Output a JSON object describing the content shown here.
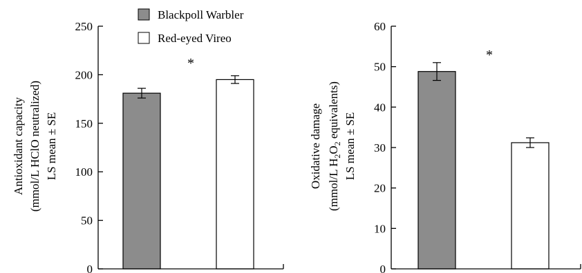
{
  "chart_data": [
    {
      "type": "bar",
      "categories": [
        "Blackpoll Warbler",
        "Red-eyed Vireo"
      ],
      "values": [
        181,
        195
      ],
      "errors": [
        5,
        4
      ],
      "ylim": [
        0,
        250
      ],
      "yticks": [
        0,
        50,
        100,
        150,
        200,
        250
      ],
      "ylabel_lines": [
        "Antioxidant capacity",
        "(mmol/L HClO neutralized)",
        "LS mean ± SE"
      ],
      "annotation": "*",
      "colors": [
        "#8c8c8c",
        "#ffffff"
      ]
    },
    {
      "type": "bar",
      "categories": [
        "Blackpoll Warbler",
        "Red-eyed Vireo"
      ],
      "values": [
        48.8,
        31.2
      ],
      "errors": [
        2.2,
        1.2
      ],
      "ylim": [
        0,
        60
      ],
      "yticks": [
        0,
        10,
        20,
        30,
        40,
        50,
        60
      ],
      "ylabel_lines": [
        "Oxidative damage",
        "(mmol/L H2O2 equivalents)",
        "LS mean ± SE"
      ],
      "annotation": "*",
      "colors": [
        "#8c8c8c",
        "#ffffff"
      ]
    }
  ],
  "legend": [
    {
      "label": "Blackpoll Warbler",
      "color": "#8c8c8c"
    },
    {
      "label": "Red-eyed Vireo",
      "color": "#ffffff"
    }
  ]
}
